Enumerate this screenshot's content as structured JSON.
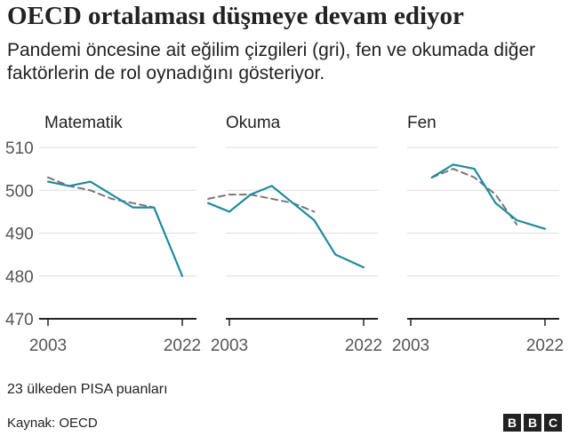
{
  "title": "OECD ortalaması düşmeye devam ediyor",
  "subtitle": "Pandemi öncesine ait eğilim çizgileri (gri), fen ve okumada diğer faktörlerin de rol oynadığını gösteriyor.",
  "note": "23 ülkeden PISA puanları",
  "source": "Kaynak: OECD",
  "logo_letters": [
    "B",
    "B",
    "C"
  ],
  "colors": {
    "actual": "#1f8a9e",
    "trend": "#777777",
    "axis": "#222222",
    "grid": "#dddddd"
  },
  "chart_data": [
    {
      "type": "line",
      "title": "Matematik",
      "ylim": [
        470,
        510
      ],
      "yticks": [
        470,
        480,
        490,
        500,
        510
      ],
      "xlim": [
        2003,
        2022
      ],
      "xticks": [
        "2003",
        "2022"
      ],
      "series": [
        {
          "kind": "actual",
          "x": [
            2003,
            2006,
            2009,
            2012,
            2015,
            2018,
            2022
          ],
          "values": [
            502,
            501,
            502,
            499,
            496,
            496,
            480
          ]
        },
        {
          "kind": "trend",
          "x": [
            2003,
            2006,
            2009,
            2012,
            2015,
            2018
          ],
          "values": [
            503,
            501,
            500,
            498,
            497,
            496
          ]
        }
      ]
    },
    {
      "type": "line",
      "title": "Okuma",
      "ylim": [
        470,
        510
      ],
      "xlim": [
        2000,
        2022
      ],
      "xticks": [
        "2003",
        "2022"
      ],
      "series": [
        {
          "kind": "actual",
          "x": [
            2000,
            2003,
            2006,
            2009,
            2012,
            2015,
            2018,
            2022
          ],
          "values": [
            497,
            495,
            499,
            501,
            497,
            493,
            485,
            482
          ]
        },
        {
          "kind": "trend",
          "x": [
            2000,
            2003,
            2006,
            2009,
            2012,
            2015
          ],
          "values": [
            498,
            499,
            499,
            498,
            497,
            495
          ]
        }
      ]
    },
    {
      "type": "line",
      "title": "Fen",
      "ylim": [
        470,
        510
      ],
      "xlim": [
        2003,
        2022
      ],
      "xticks": [
        "2003",
        "2022"
      ],
      "series": [
        {
          "kind": "actual",
          "x": [
            2006,
            2009,
            2012,
            2015,
            2018,
            2022
          ],
          "values": [
            503,
            506,
            505,
            497,
            493,
            491
          ]
        },
        {
          "kind": "trend",
          "x": [
            2006,
            2009,
            2012,
            2015,
            2018
          ],
          "values": [
            503,
            505,
            503,
            499,
            492
          ]
        }
      ]
    }
  ]
}
